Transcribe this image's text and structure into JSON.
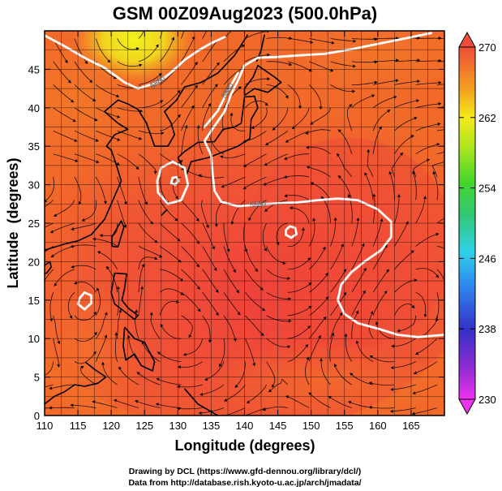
{
  "chart_data": {
    "type": "heatmap",
    "title": "GSM 00Z09Aug2023 (500.0hPa)",
    "xlabel": "Longitude (degrees)",
    "ylabel": "Latitude  (degrees)",
    "xlim": [
      110,
      170
    ],
    "ylim": [
      0,
      50
    ],
    "x_ticks": [
      "110",
      "115",
      "120",
      "125",
      "130",
      "135",
      "140",
      "145",
      "150",
      "155",
      "160",
      "165"
    ],
    "y_ticks": [
      "0",
      "5",
      "10",
      "15",
      "20",
      "25",
      "30",
      "35",
      "40",
      "45"
    ],
    "colorbar": {
      "min": 230,
      "max": 270,
      "ticks": [
        "230",
        "238",
        "246",
        "254",
        "262",
        "270"
      ]
    },
    "contours": [
      {
        "label": "5880",
        "points": [
          [
            110,
            49.4
          ],
          [
            113,
            48.0
          ],
          [
            116,
            46.5
          ],
          [
            119,
            45.2
          ],
          [
            122,
            43.3
          ],
          [
            124,
            42.5
          ],
          [
            127,
            43.3
          ],
          [
            129,
            44.6
          ],
          [
            131,
            46.2
          ],
          [
            133,
            47.4
          ],
          [
            135,
            48.4
          ],
          [
            137,
            49.2
          ]
        ]
      },
      {
        "label": "5880",
        "points": [
          [
            168,
            49.7
          ],
          [
            164,
            49.0
          ],
          [
            160,
            48.3
          ],
          [
            156,
            47.6
          ],
          [
            152,
            47.0
          ],
          [
            148,
            46.8
          ],
          [
            145,
            46.6
          ],
          [
            142,
            46.5
          ],
          [
            140,
            45.5
          ],
          [
            139,
            43.5
          ],
          [
            138,
            41.8
          ],
          [
            137,
            39.5
          ],
          [
            135,
            37.0
          ],
          [
            134,
            35.7
          ],
          [
            135,
            33.8
          ],
          [
            135.2,
            31.5
          ],
          [
            135.5,
            29.2
          ],
          [
            136.5,
            27.8
          ],
          [
            139,
            27.2
          ],
          [
            142,
            27.4
          ],
          [
            145,
            27.6
          ],
          [
            148,
            27.7
          ],
          [
            151,
            28.0
          ],
          [
            154,
            28.2
          ],
          [
            157,
            28.0
          ],
          [
            160,
            26.8
          ],
          [
            162,
            25.2
          ],
          [
            162,
            23.2
          ],
          [
            160.5,
            21.5
          ],
          [
            158,
            20.0
          ],
          [
            156,
            18.6
          ],
          [
            154.5,
            17.0
          ],
          [
            154,
            15.0
          ],
          [
            155,
            13.2
          ],
          [
            157,
            12.0
          ],
          [
            160,
            11.3
          ],
          [
            163,
            10.5
          ],
          [
            166,
            10.2
          ],
          [
            170,
            10.5
          ]
        ]
      },
      {
        "label": "5880",
        "points": [
          [
            134,
            37.5
          ],
          [
            136,
            39.6
          ],
          [
            137.5,
            42.2
          ],
          [
            139,
            44.5
          ]
        ]
      },
      {
        "label": "",
        "points": [
          [
            127,
            29.0
          ],
          [
            128.5,
            27.5
          ],
          [
            130.5,
            28.0
          ],
          [
            131.5,
            30.0
          ],
          [
            131,
            32.2
          ],
          [
            129.2,
            33.0
          ],
          [
            127.5,
            32.2
          ],
          [
            126.9,
            30.5
          ],
          [
            127,
            29.0
          ]
        ]
      },
      {
        "label": "",
        "points": [
          [
            129,
            30.2
          ],
          [
            129.6,
            30.0
          ],
          [
            130.1,
            30.5
          ],
          [
            129.8,
            31.0
          ],
          [
            129.2,
            30.9
          ],
          [
            129,
            30.2
          ]
        ]
      },
      {
        "label": "",
        "points": [
          [
            146.2,
            23.5
          ],
          [
            147.0,
            23.1
          ],
          [
            147.8,
            23.6
          ],
          [
            147.6,
            24.4
          ],
          [
            146.8,
            24.6
          ],
          [
            146.2,
            24.1
          ],
          [
            146.2,
            23.5
          ]
        ]
      },
      {
        "label": "",
        "points": [
          [
            115.0,
            14.5
          ],
          [
            116.0,
            13.8
          ],
          [
            117.0,
            14.6
          ],
          [
            117.0,
            15.6
          ],
          [
            116.0,
            16.0
          ],
          [
            115.3,
            15.3
          ],
          [
            115.0,
            14.5
          ]
        ]
      }
    ]
  },
  "credits": {
    "line1": "Drawing by DCL (https://www.gfd-dennou.org/library/dcl/)",
    "line2": "Data from http://database.rish.kyoto-u.ac.jp/arch/jmadata/"
  }
}
